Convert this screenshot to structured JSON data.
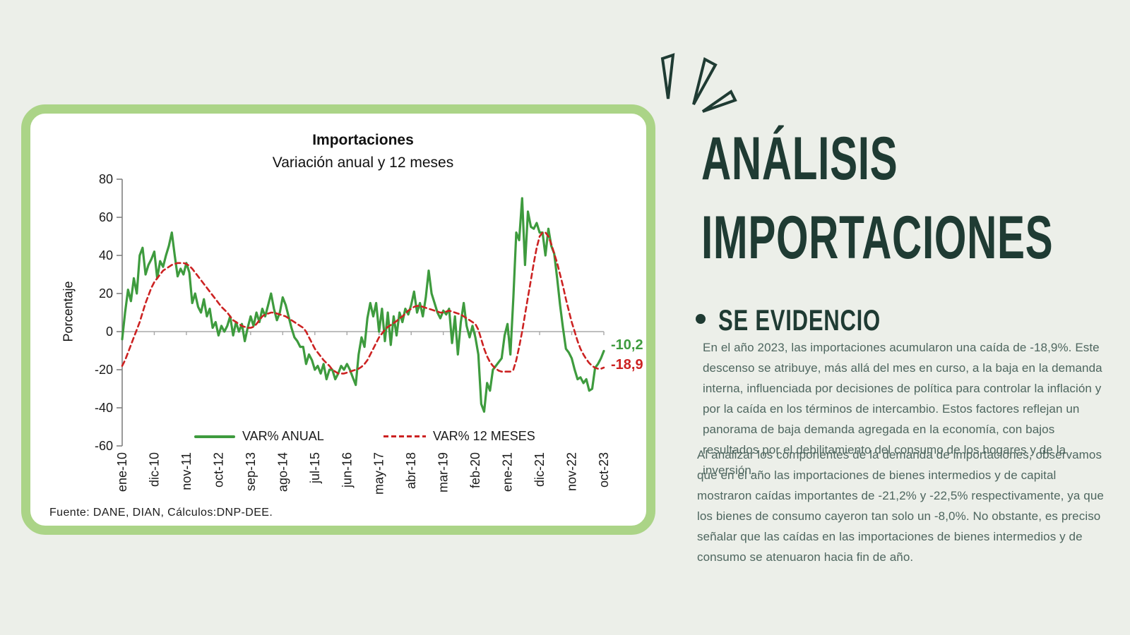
{
  "page": {
    "background_color": "#ecefe9"
  },
  "chart_card": {
    "border_color": "#abd487",
    "source": "Fuente: DANE, DIAN, Cálculos:DNP-DEE."
  },
  "chart_data": {
    "type": "line",
    "title": "Importaciones",
    "subtitle": "Variación anual y 12 meses",
    "ylabel": "Porcentaje",
    "ylim": [
      -60,
      80
    ],
    "y_ticks": [
      80,
      60,
      40,
      20,
      0,
      -20,
      -40,
      -60
    ],
    "x_start": "ene-10",
    "x_end": "oct-23",
    "x_tick_interval_months": 11,
    "x_tick_labels": [
      "ene-10",
      "dic-10",
      "nov-11",
      "oct-12",
      "sep-13",
      "ago-14",
      "jul-15",
      "jun-16",
      "may-17",
      "abr-18",
      "mar-19",
      "feb-20",
      "ene-21",
      "dic-21",
      "nov-22",
      "oct-23"
    ],
    "grid": "zero-line-only",
    "legend_position": "bottom-inside",
    "axis_color": "#808080",
    "zero_line_color": "#a8a8a8",
    "series": [
      {
        "name": "VAR% ANUAL",
        "color": "#3e9b3e",
        "style": "solid",
        "values": [
          -4,
          10,
          22,
          16,
          28,
          20,
          40,
          44,
          30,
          35,
          38,
          42,
          28,
          37,
          34,
          40,
          45,
          52,
          40,
          29,
          33,
          30,
          36,
          31,
          15,
          20,
          13,
          10,
          17,
          8,
          12,
          2,
          5,
          -2,
          3,
          0,
          3,
          8,
          -2,
          5,
          0,
          4,
          -5,
          2,
          8,
          3,
          10,
          5,
          12,
          8,
          14,
          20,
          12,
          6,
          10,
          18,
          14,
          8,
          2,
          -3,
          -5,
          -8,
          -8,
          -17,
          -12,
          -15,
          -20,
          -18,
          -22,
          -17,
          -25,
          -20,
          -20,
          -25,
          -22,
          -18,
          -20,
          -17,
          -20,
          -24,
          -28,
          -12,
          -3,
          -8,
          7,
          15,
          8,
          15,
          0,
          12,
          -5,
          10,
          -7,
          8,
          -2,
          10,
          5,
          12,
          9,
          14,
          21,
          10,
          15,
          8,
          18,
          32,
          20,
          15,
          10,
          7,
          11,
          9,
          12,
          -6,
          8,
          -12,
          5,
          15,
          3,
          -3,
          3,
          -3,
          -12,
          -38,
          -42,
          -27,
          -31,
          -20,
          -18,
          -16,
          -14,
          -2,
          4,
          -12,
          18,
          52,
          48,
          70,
          35,
          63,
          55,
          54,
          57,
          52,
          52,
          40,
          54,
          45,
          41,
          28,
          14,
          2,
          -9,
          -11,
          -14,
          -20,
          -25,
          -24,
          -27,
          -25,
          -31,
          -30,
          -19,
          -17,
          -14,
          -10.2
        ]
      },
      {
        "name": "VAR% 12 MESES",
        "color": "#cc2222",
        "style": "dashed",
        "values": [
          -18,
          -15,
          -11,
          -7,
          -3,
          1,
          5,
          10,
          15,
          19,
          23,
          26,
          28,
          30,
          32,
          33,
          34,
          35,
          35.5,
          36,
          36,
          36,
          35.5,
          34.5,
          33,
          31,
          29,
          27,
          25,
          23,
          21,
          19,
          17,
          15,
          13,
          11.5,
          10,
          8,
          6,
          5,
          4,
          3,
          2.5,
          2,
          2,
          2.5,
          4,
          6,
          8,
          9,
          9.5,
          10,
          10,
          9.5,
          9,
          8.5,
          8,
          7,
          6,
          5,
          4,
          3,
          2,
          0,
          -3,
          -6,
          -9,
          -11,
          -13,
          -15,
          -16.5,
          -18,
          -20,
          -21,
          -22,
          -22,
          -22,
          -21.5,
          -21,
          -20.5,
          -20,
          -19.5,
          -18.5,
          -17,
          -15,
          -12,
          -9,
          -6,
          -3,
          -1,
          1,
          2.5,
          3.5,
          4.5,
          5.5,
          7,
          8,
          9.5,
          11,
          12,
          13,
          13.5,
          13.5,
          13,
          12.5,
          12,
          11.5,
          11,
          10.5,
          10,
          10,
          10.5,
          11,
          10.5,
          10,
          9.5,
          9,
          8,
          7,
          6,
          5,
          4,
          1,
          -4,
          -9,
          -13,
          -16,
          -18,
          -19.5,
          -20.5,
          -21,
          -21,
          -21,
          -21,
          -20,
          -15,
          -8,
          0,
          9,
          18,
          27,
          36,
          44,
          50,
          52,
          52,
          50,
          46,
          41,
          36,
          30,
          24,
          17,
          11,
          5,
          0,
          -5,
          -9,
          -12,
          -14.5,
          -16.5,
          -18,
          -19,
          -19.5,
          -19.5,
          -18.9
        ]
      }
    ],
    "end_value_labels": [
      {
        "series": "VAR% ANUAL",
        "text": "-10,2",
        "color": "#3e9b3e"
      },
      {
        "series": "VAR% 12 MESES",
        "text": "-18,9",
        "color": "#cc2222"
      }
    ]
  },
  "panel": {
    "decoration": "sparkle-burst-icon",
    "accent_color": "#1f3b33",
    "title_line1": "ANÁLISIS",
    "title_line2": "IMPORTACIONES",
    "heading": "SE EVIDENCIO",
    "paragraph1": "En el año 2023, las importaciones acumularon una caída de -18,9%. Este descenso se atribuye, más allá del mes en curso, a la baja en la demanda interna, influenciada por decisiones de política para controlar la inflación y por la caída en los términos de intercambio. Estos factores reflejan un panorama de baja demanda agregada en la economía, con bajos resultados por el debilitamiento del consumo de los hogares y de la inversión.",
    "paragraph2": "Al analizar los componentes de la demanda de importaciones, observamos que en el año las importaciones de bienes intermedios y de capital mostraron caídas importantes de -21,2% y -22,5% respectivamente, ya que los bienes de consumo cayeron tan solo un -8,0%. No obstante, es preciso señalar que las caídas en las importaciones de bienes intermedios y de consumo se atenuaron hacia fin de año."
  }
}
